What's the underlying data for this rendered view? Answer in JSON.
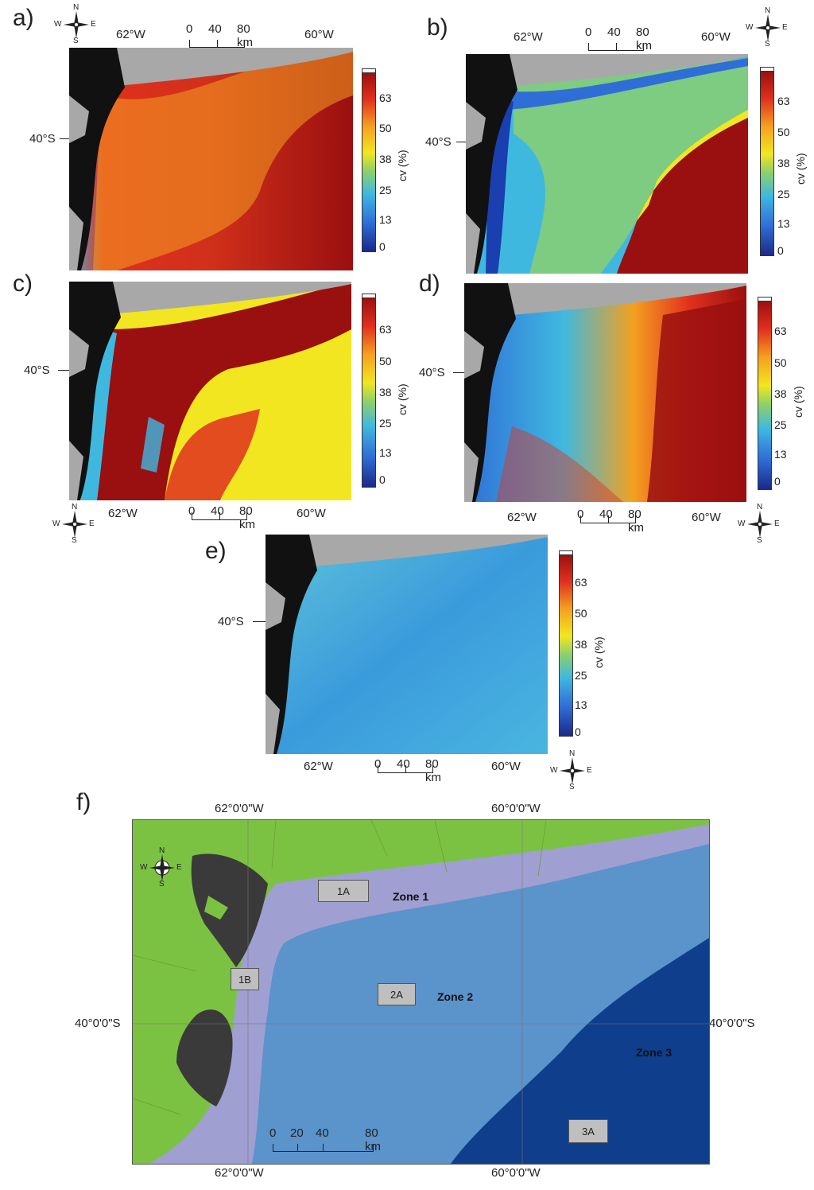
{
  "panels": {
    "a": {
      "label": "a)"
    },
    "b": {
      "label": "b)"
    },
    "c": {
      "label": "c)"
    },
    "d": {
      "label": "d)"
    },
    "e": {
      "label": "e)"
    },
    "f": {
      "label": "f)"
    }
  },
  "axes": {
    "lon_62": "62°W",
    "lon_60": "60°W",
    "lat_40": "40°S",
    "scale_0": "0",
    "scale_40": "40",
    "scale_80": "80 km"
  },
  "colorbar": {
    "title": "cv (%)",
    "ticks": [
      "63",
      "50",
      "38",
      "25",
      "13",
      "0"
    ],
    "colors": [
      "#1a2a8a",
      "#2f6ed6",
      "#3fb8e0",
      "#8fd06a",
      "#f2e620",
      "#f5a020",
      "#e0301e",
      "#9a0f0f"
    ]
  },
  "compass": {
    "n": "N",
    "s": "S",
    "e": "E",
    "w": "W"
  },
  "zone_map": {
    "lon_62_top": "62°0'0\"W",
    "lon_60_top": "60°0'0\"W",
    "lon_62_bottom": "62°0'0\"W",
    "lon_60_bottom": "60°0'0\"W",
    "lat_40_left": "40°0'0\"S",
    "lat_40_right": "40°0'0\"S",
    "scale": [
      "0",
      "20",
      "40",
      "80 km"
    ],
    "zones": [
      "Zone 1",
      "Zone 2",
      "Zone 3"
    ],
    "stations": [
      "1A",
      "1B",
      "2A",
      "3A"
    ],
    "colors": {
      "land": "#7cc242",
      "zone1": "#9f9fd2",
      "zone2": "#5b93cb",
      "zone3": "#0f3f8c",
      "dark_land": "#3a3a3a"
    }
  }
}
